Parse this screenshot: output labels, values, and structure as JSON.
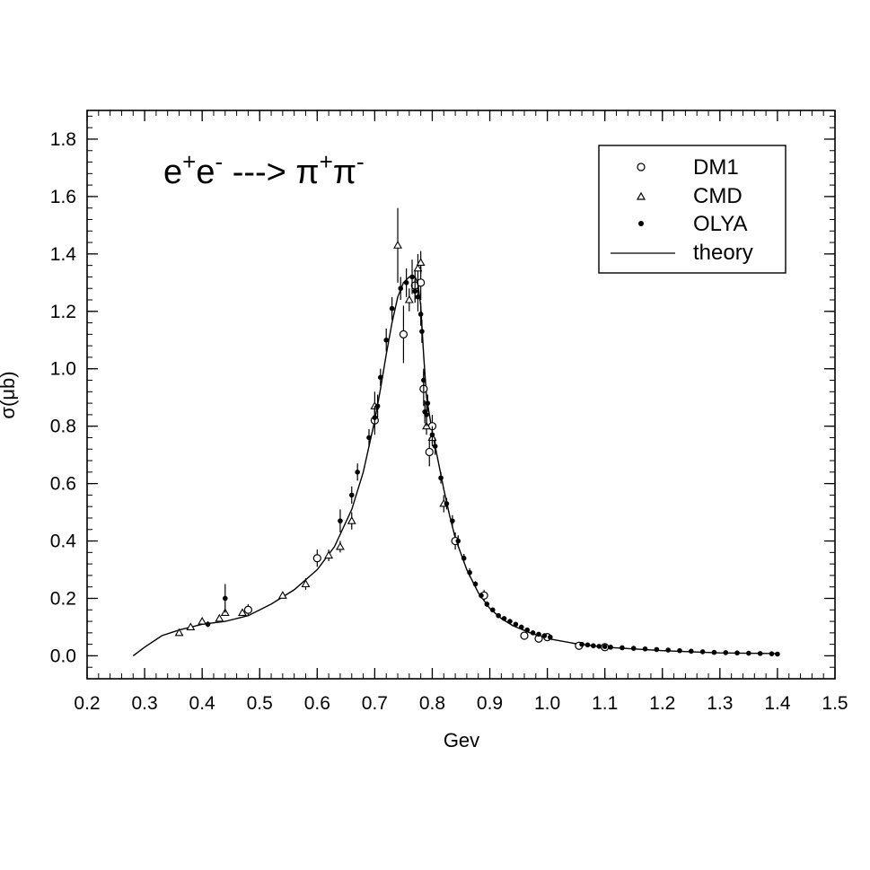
{
  "chart_data": {
    "type": "scatter",
    "title": "e⁺e⁻ ---> π⁺π⁻",
    "title_parts": {
      "e1": "e",
      "sup1": "+",
      "e2": "e",
      "sup2": "-",
      "arrow": " ---> ",
      "pi1": "π",
      "sup3": "+",
      "pi2": "π",
      "sup4": "-"
    },
    "xlabel": "Gev",
    "ylabel": "σ(μb)",
    "xlim": [
      0.2,
      1.5
    ],
    "ylim": [
      -0.08,
      1.9
    ],
    "xticks": [
      "0.2",
      "0.3",
      "0.4",
      "0.5",
      "0.6",
      "0.7",
      "0.8",
      "0.9",
      "1.0",
      "1.1",
      "1.2",
      "1.3",
      "1.4",
      "1.5"
    ],
    "yticks": [
      "0.0",
      "0.2",
      "0.4",
      "0.6",
      "0.8",
      "1.0",
      "1.2",
      "1.4",
      "1.6",
      "1.8"
    ],
    "legend_position": "top-right",
    "grid": false,
    "series": [
      {
        "name": "DM1",
        "marker": "open-circle",
        "points": [
          [
            0.48,
            0.16,
            0.02
          ],
          [
            0.6,
            0.34,
            0.03
          ],
          [
            0.7,
            0.82,
            0.05
          ],
          [
            0.75,
            1.12,
            0.1
          ],
          [
            0.77,
            1.29,
            0.05
          ],
          [
            0.78,
            1.3,
            0.06
          ],
          [
            0.785,
            0.93,
            0.06
          ],
          [
            0.795,
            0.71,
            0.05
          ],
          [
            0.8,
            0.8,
            0.04
          ],
          [
            0.84,
            0.4,
            0.03
          ],
          [
            0.89,
            0.21,
            0.02
          ],
          [
            0.96,
            0.07,
            0.01
          ],
          [
            0.985,
            0.06,
            0.01
          ],
          [
            1.0,
            0.065,
            0.008
          ],
          [
            1.055,
            0.035,
            0.005
          ],
          [
            1.1,
            0.03,
            0.005
          ]
        ]
      },
      {
        "name": "CMD",
        "marker": "open-triangle",
        "points": [
          [
            0.36,
            0.08,
            0.01
          ],
          [
            0.38,
            0.1,
            0.01
          ],
          [
            0.4,
            0.12,
            0.01
          ],
          [
            0.43,
            0.13,
            0.01
          ],
          [
            0.44,
            0.15,
            0.01
          ],
          [
            0.47,
            0.15,
            0.01
          ],
          [
            0.54,
            0.21,
            0.01
          ],
          [
            0.58,
            0.25,
            0.02
          ],
          [
            0.62,
            0.35,
            0.02
          ],
          [
            0.64,
            0.38,
            0.02
          ],
          [
            0.66,
            0.47,
            0.03
          ],
          [
            0.7,
            0.87,
            0.05
          ],
          [
            0.74,
            1.43,
            0.13
          ],
          [
            0.76,
            1.24,
            0.04
          ],
          [
            0.775,
            1.35,
            0.05
          ],
          [
            0.78,
            1.37,
            0.04
          ],
          [
            0.79,
            0.8,
            0.03
          ],
          [
            0.8,
            0.76,
            0.03
          ],
          [
            0.82,
            0.53,
            0.03
          ]
        ]
      },
      {
        "name": "OLYA",
        "marker": "filled-circle",
        "points": [
          [
            0.41,
            0.11,
            0.01
          ],
          [
            0.44,
            0.2,
            0.05
          ],
          [
            0.64,
            0.47,
            0.04
          ],
          [
            0.66,
            0.56,
            0.03
          ],
          [
            0.67,
            0.64,
            0.03
          ],
          [
            0.69,
            0.76,
            0.03
          ],
          [
            0.7,
            0.83,
            0.04
          ],
          [
            0.705,
            0.87,
            0.04
          ],
          [
            0.71,
            0.97,
            0.03
          ],
          [
            0.72,
            1.1,
            0.04
          ],
          [
            0.73,
            1.21,
            0.04
          ],
          [
            0.745,
            1.28,
            0.04
          ],
          [
            0.755,
            1.3,
            0.05
          ],
          [
            0.765,
            1.32,
            0.06
          ],
          [
            0.77,
            1.27,
            0.04
          ],
          [
            0.775,
            1.25,
            0.05
          ],
          [
            0.78,
            1.19,
            0.04
          ],
          [
            0.782,
            1.13,
            0.04
          ],
          [
            0.785,
            0.96,
            0.04
          ],
          [
            0.787,
            0.85,
            0.04
          ],
          [
            0.79,
            0.84,
            0.04
          ],
          [
            0.792,
            0.88,
            0.03
          ],
          [
            0.8,
            0.77,
            0.03
          ],
          [
            0.805,
            0.73,
            0.03
          ],
          [
            0.815,
            0.62,
            0.02
          ],
          [
            0.825,
            0.53,
            0.02
          ],
          [
            0.835,
            0.47,
            0.02
          ],
          [
            0.845,
            0.4,
            0.02
          ],
          [
            0.855,
            0.34,
            0.015
          ],
          [
            0.865,
            0.29,
            0.015
          ],
          [
            0.875,
            0.25,
            0.01
          ],
          [
            0.885,
            0.21,
            0.01
          ],
          [
            0.895,
            0.18,
            0.01
          ],
          [
            0.905,
            0.16,
            0.008
          ],
          [
            0.915,
            0.14,
            0.008
          ],
          [
            0.925,
            0.13,
            0.007
          ],
          [
            0.935,
            0.12,
            0.007
          ],
          [
            0.945,
            0.11,
            0.006
          ],
          [
            0.955,
            0.1,
            0.006
          ],
          [
            0.965,
            0.09,
            0.005
          ],
          [
            0.975,
            0.08,
            0.005
          ],
          [
            0.985,
            0.075,
            0.005
          ],
          [
            0.995,
            0.07,
            0.004
          ],
          [
            1.005,
            0.065,
            0.004
          ],
          [
            1.06,
            0.04,
            0.003
          ],
          [
            1.07,
            0.038,
            0.003
          ],
          [
            1.08,
            0.035,
            0.003
          ],
          [
            1.09,
            0.033,
            0.003
          ],
          [
            1.1,
            0.032,
            0.003
          ],
          [
            1.11,
            0.03,
            0.003
          ],
          [
            1.13,
            0.028,
            0.003
          ],
          [
            1.15,
            0.026,
            0.003
          ],
          [
            1.17,
            0.024,
            0.003
          ],
          [
            1.19,
            0.022,
            0.003
          ],
          [
            1.21,
            0.02,
            0.003
          ],
          [
            1.23,
            0.018,
            0.003
          ],
          [
            1.25,
            0.016,
            0.003
          ],
          [
            1.27,
            0.014,
            0.003
          ],
          [
            1.29,
            0.012,
            0.003
          ],
          [
            1.31,
            0.011,
            0.003
          ],
          [
            1.33,
            0.01,
            0.003
          ],
          [
            1.35,
            0.009,
            0.003
          ],
          [
            1.37,
            0.008,
            0.003
          ],
          [
            1.39,
            0.007,
            0.003
          ],
          [
            1.4,
            0.006,
            0.003
          ]
        ]
      },
      {
        "name": "theory",
        "marker": "line",
        "points": [
          [
            0.28,
            0.0
          ],
          [
            0.3,
            0.03
          ],
          [
            0.33,
            0.07
          ],
          [
            0.36,
            0.09
          ],
          [
            0.4,
            0.11
          ],
          [
            0.44,
            0.12
          ],
          [
            0.48,
            0.14
          ],
          [
            0.52,
            0.18
          ],
          [
            0.56,
            0.23
          ],
          [
            0.6,
            0.3
          ],
          [
            0.63,
            0.38
          ],
          [
            0.66,
            0.51
          ],
          [
            0.68,
            0.64
          ],
          [
            0.7,
            0.82
          ],
          [
            0.71,
            0.93
          ],
          [
            0.72,
            1.05
          ],
          [
            0.73,
            1.16
          ],
          [
            0.74,
            1.25
          ],
          [
            0.75,
            1.3
          ],
          [
            0.76,
            1.32
          ],
          [
            0.77,
            1.32
          ],
          [
            0.775,
            1.3
          ],
          [
            0.78,
            1.22
          ],
          [
            0.785,
            1.05
          ],
          [
            0.79,
            0.9
          ],
          [
            0.8,
            0.78
          ],
          [
            0.81,
            0.68
          ],
          [
            0.82,
            0.58
          ],
          [
            0.83,
            0.49
          ],
          [
            0.84,
            0.41
          ],
          [
            0.86,
            0.3
          ],
          [
            0.88,
            0.22
          ],
          [
            0.9,
            0.165
          ],
          [
            0.92,
            0.13
          ],
          [
            0.94,
            0.105
          ],
          [
            0.97,
            0.08
          ],
          [
            1.0,
            0.06
          ],
          [
            1.05,
            0.042
          ],
          [
            1.1,
            0.03
          ],
          [
            1.2,
            0.018
          ],
          [
            1.3,
            0.01
          ],
          [
            1.4,
            0.008
          ]
        ]
      }
    ]
  }
}
